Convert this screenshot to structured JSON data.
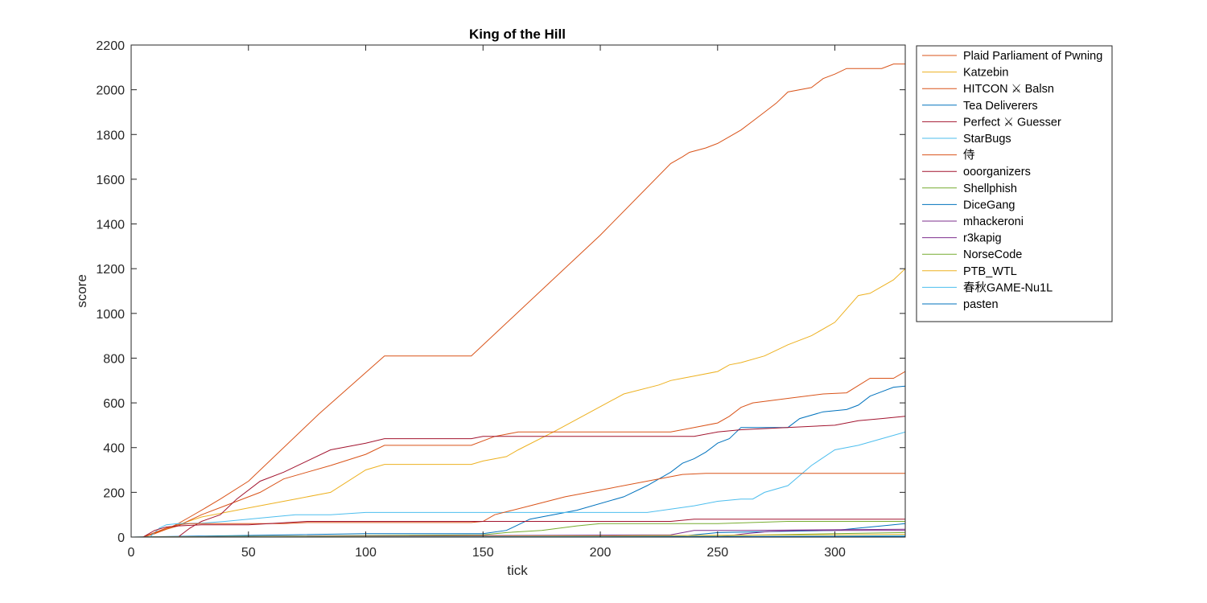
{
  "chart_data": {
    "type": "line",
    "title": "King of the Hill",
    "xlabel": "tick",
    "ylabel": "score",
    "xlim": [
      0,
      330
    ],
    "ylim": [
      0,
      2200
    ],
    "xticks": [
      0,
      50,
      100,
      150,
      200,
      250,
      300
    ],
    "yticks": [
      0,
      200,
      400,
      600,
      800,
      1000,
      1200,
      1400,
      1600,
      1800,
      2000,
      2200
    ],
    "grid": false,
    "legend_position": "outside-top-right",
    "series": [
      {
        "name": "Plaid Parliament of Pwning",
        "color": "#D95319",
        "x": [
          5,
          8,
          12,
          16,
          20,
          25,
          30,
          38,
          50,
          80,
          108,
          145,
          200,
          230,
          235,
          238,
          245,
          250,
          255,
          260,
          265,
          270,
          275,
          280,
          290,
          295,
          300,
          305,
          310,
          320,
          325,
          330
        ],
        "y": [
          0,
          10,
          25,
          40,
          60,
          90,
          120,
          170,
          250,
          550,
          810,
          810,
          1350,
          1670,
          1700,
          1720,
          1740,
          1760,
          1790,
          1820,
          1860,
          1900,
          1940,
          1990,
          2010,
          2050,
          2070,
          2095,
          2095,
          2095,
          2115,
          2115
        ]
      },
      {
        "name": "Katzebin",
        "color": "#EDB120",
        "x": [
          5,
          10,
          20,
          30,
          50,
          70,
          85,
          100,
          108,
          145,
          150,
          160,
          165,
          180,
          210,
          225,
          230,
          235,
          240,
          250,
          255,
          260,
          270,
          280,
          290,
          300,
          310,
          315,
          320,
          325,
          330
        ],
        "y": [
          0,
          15,
          55,
          90,
          130,
          170,
          200,
          300,
          325,
          325,
          340,
          360,
          390,
          470,
          640,
          680,
          700,
          710,
          720,
          740,
          770,
          780,
          810,
          860,
          900,
          960,
          1080,
          1090,
          1120,
          1150,
          1200
        ]
      },
      {
        "name": "HITCON ⚔ Balsn",
        "color": "#D95319",
        "x": [
          5,
          10,
          15,
          20,
          25,
          30,
          40,
          55,
          65,
          75,
          85,
          100,
          108,
          145,
          155,
          165,
          200,
          230,
          240,
          250,
          255,
          260,
          265,
          280,
          295,
          305,
          315,
          325,
          330
        ],
        "y": [
          0,
          15,
          35,
          50,
          75,
          100,
          140,
          200,
          260,
          290,
          320,
          370,
          410,
          410,
          450,
          470,
          470,
          470,
          490,
          510,
          540,
          580,
          600,
          620,
          640,
          645,
          710,
          710,
          740
        ]
      },
      {
        "name": "Tea Deliverers",
        "color": "#0072BD",
        "x": [
          0,
          100,
          150,
          160,
          170,
          190,
          210,
          220,
          230,
          235,
          240,
          245,
          250,
          255,
          260,
          265,
          270,
          280,
          285,
          295,
          305,
          310,
          315,
          320,
          325,
          330
        ],
        "y": [
          0,
          15,
          15,
          30,
          80,
          120,
          180,
          230,
          290,
          330,
          350,
          380,
          420,
          440,
          490,
          490,
          490,
          490,
          530,
          560,
          570,
          590,
          630,
          650,
          670,
          675
        ]
      },
      {
        "name": "Perfect ⚔ Guesser",
        "color": "#A2142F",
        "x": [
          20,
          25,
          30,
          38,
          45,
          55,
          65,
          75,
          85,
          100,
          108,
          145,
          150,
          200,
          240,
          250,
          260,
          300,
          310,
          320,
          330
        ],
        "y": [
          0,
          40,
          70,
          100,
          170,
          250,
          290,
          340,
          390,
          420,
          440,
          440,
          450,
          450,
          450,
          470,
          480,
          500,
          520,
          530,
          540
        ]
      },
      {
        "name": "StarBugs",
        "color": "#4DBEEE",
        "x": [
          8,
          12,
          15,
          20,
          30,
          40,
          60,
          70,
          85,
          100,
          108,
          220,
          230,
          240,
          250,
          260,
          265,
          270,
          280,
          290,
          300,
          310,
          320,
          330
        ],
        "y": [
          0,
          40,
          55,
          60,
          62,
          70,
          90,
          100,
          100,
          110,
          110,
          110,
          125,
          140,
          160,
          170,
          170,
          200,
          230,
          320,
          390,
          410,
          440,
          470
        ]
      },
      {
        "name": "侍",
        "color": "#D95319",
        "x": [
          5,
          10,
          15,
          20,
          25,
          30,
          50,
          65,
          75,
          145,
          150,
          155,
          170,
          185,
          200,
          230,
          235,
          245,
          260,
          330
        ],
        "y": [
          0,
          20,
          40,
          55,
          60,
          60,
          60,
          60,
          65,
          65,
          70,
          100,
          140,
          180,
          210,
          270,
          280,
          285,
          285,
          285
        ]
      },
      {
        "name": "ooorganizers",
        "color": "#A2142F",
        "x": [
          5,
          10,
          15,
          20,
          30,
          50,
          75,
          108,
          230,
          240,
          330
        ],
        "y": [
          0,
          30,
          45,
          50,
          55,
          55,
          70,
          70,
          70,
          80,
          80
        ]
      },
      {
        "name": "Shellphish",
        "color": "#77AC30",
        "x": [
          0,
          150,
          160,
          175,
          190,
          200,
          250,
          280,
          330
        ],
        "y": [
          0,
          10,
          20,
          30,
          50,
          60,
          60,
          70,
          70
        ]
      },
      {
        "name": "DiceGang",
        "color": "#0072BD",
        "x": [
          0,
          235,
          240,
          250,
          300,
          310,
          320,
          330
        ],
        "y": [
          0,
          5,
          10,
          20,
          30,
          40,
          50,
          60
        ]
      },
      {
        "name": "mhackeroni",
        "color": "#7E2F8E",
        "x": [
          0,
          230,
          240,
          260,
          330
        ],
        "y": [
          0,
          10,
          30,
          30,
          35
        ]
      },
      {
        "name": "r3kapig",
        "color": "#7E2F8E",
        "x": [
          0,
          250,
          262,
          272,
          285,
          330
        ],
        "y": [
          0,
          0,
          15,
          25,
          30,
          30
        ]
      },
      {
        "name": "NorseCode",
        "color": "#77AC30",
        "x": [
          0,
          100,
          200,
          260,
          300,
          330
        ],
        "y": [
          0,
          2,
          5,
          8,
          15,
          20
        ]
      },
      {
        "name": "PTB_WTL",
        "color": "#EDB120",
        "x": [
          0,
          100,
          200,
          250,
          300,
          330
        ],
        "y": [
          0,
          2,
          5,
          8,
          10,
          12
        ]
      },
      {
        "name": "春秋GAME-Nu1L",
        "color": "#4DBEEE",
        "x": [
          0,
          100,
          200,
          300,
          330
        ],
        "y": [
          0,
          1,
          2,
          4,
          6
        ]
      },
      {
        "name": "pasten",
        "color": "#0072BD",
        "x": [
          0,
          100,
          200,
          300,
          330
        ],
        "y": [
          0,
          0,
          1,
          2,
          3
        ]
      }
    ]
  }
}
